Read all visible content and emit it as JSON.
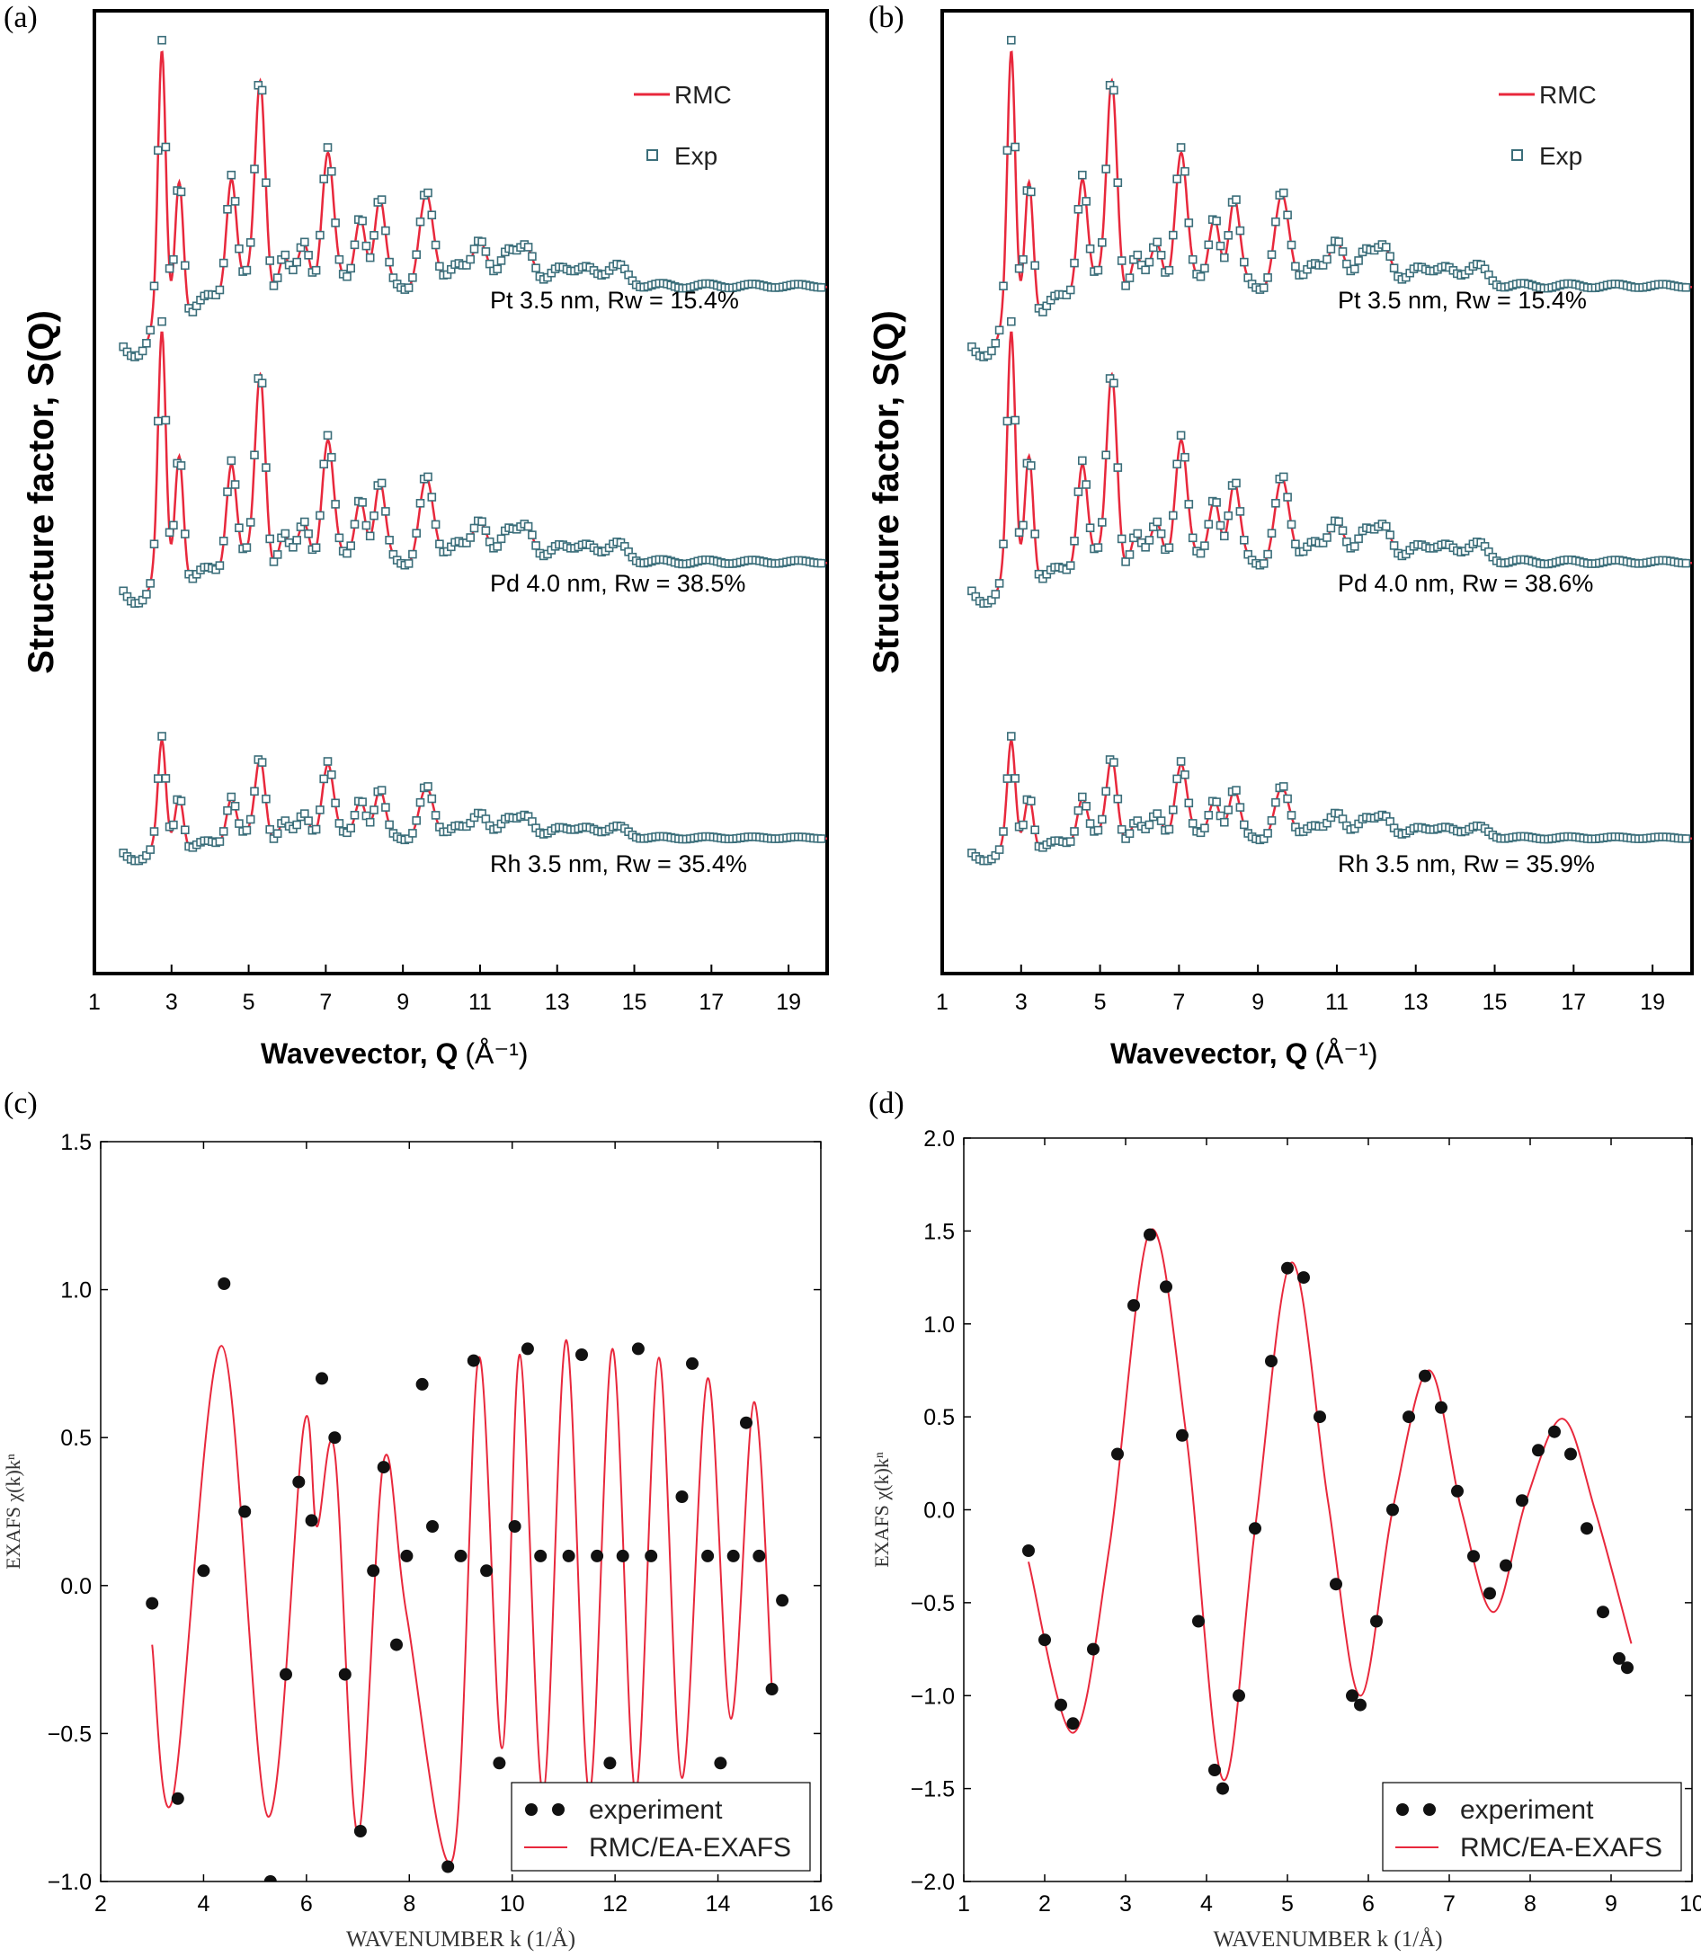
{
  "panels": {
    "a": {
      "label": "(a)"
    },
    "b": {
      "label": "(b)"
    },
    "c": {
      "label": "(c)"
    },
    "d": {
      "label": "(d)"
    }
  },
  "colors": {
    "rmc": "#e8283c",
    "exp_marker": "#3b6e7a",
    "points": "#111111",
    "axis": "#000000"
  },
  "chart_data": [
    {
      "panel": "a",
      "type": "line",
      "xlabel": "Wavevector, Q",
      "xunit": "(Å⁻¹)",
      "ylabel": "Structure factor, S(Q)",
      "xlim": [
        1,
        20
      ],
      "xticks": [
        1,
        3,
        5,
        7,
        9,
        11,
        13,
        15,
        17,
        19
      ],
      "yticks_shown": false,
      "legend": [
        "RMC",
        "Exp"
      ],
      "legend_position": "top-right",
      "series": [
        {
          "name": "Pt",
          "annotation": "Pt  3.5 nm, Rw = 15.4%",
          "rw_percent": 15.4,
          "size_nm": 3.5
        },
        {
          "name": "Pd",
          "annotation": "Pd  4.0 nm, Rw = 38.5%",
          "rw_percent": 38.5,
          "size_nm": 4.0
        },
        {
          "name": "Rh",
          "annotation": "Rh  3.5 nm, Rw = 35.4%",
          "rw_percent": 35.4,
          "size_nm": 3.5
        }
      ],
      "peak_positions_Q": [
        2.75,
        3.2,
        4.55,
        5.3,
        7.05,
        7.9,
        8.4,
        9.6,
        11.0,
        11.7,
        12.2
      ]
    },
    {
      "panel": "b",
      "type": "line",
      "xlabel": "Wavevector, Q",
      "xunit": "(Å⁻¹)",
      "ylabel": "Structure factor, S(Q)",
      "xlim": [
        1,
        20
      ],
      "xticks": [
        1,
        3,
        5,
        7,
        9,
        11,
        13,
        15,
        17,
        19
      ],
      "yticks_shown": false,
      "legend": [
        "RMC",
        "Exp"
      ],
      "legend_position": "top-right",
      "series": [
        {
          "name": "Pt",
          "annotation": "Pt  3.5 nm, Rw = 15.4%",
          "rw_percent": 15.4,
          "size_nm": 3.5
        },
        {
          "name": "Pd",
          "annotation": "Pd  4.0 nm, Rw = 38.6%",
          "rw_percent": 38.6,
          "size_nm": 4.0
        },
        {
          "name": "Rh",
          "annotation": "Rh  3.5 nm, Rw = 35.9%",
          "rw_percent": 35.9,
          "size_nm": 3.5
        }
      ],
      "peak_positions_Q": [
        2.75,
        3.2,
        4.55,
        5.3,
        7.05,
        7.9,
        8.4,
        9.6,
        11.0,
        11.7,
        12.2
      ]
    },
    {
      "panel": "c",
      "type": "scatter",
      "xlabel": "WAVENUMBER k (1/Å)",
      "ylabel": "EXAFS χ(k)kⁿ",
      "xlim": [
        2,
        16
      ],
      "ylim": [
        -1.0,
        1.5
      ],
      "xticks": [
        2,
        4,
        6,
        8,
        10,
        12,
        14,
        16
      ],
      "yticks": [
        -1.0,
        -0.5,
        0.0,
        0.5,
        1.0,
        1.5
      ],
      "xtick_labels": [
        "2",
        "4",
        "6",
        "8",
        "10",
        "12",
        "14",
        "16"
      ],
      "ytick_labels": [
        "−1.0",
        "−0.5",
        "0.0",
        "0.5",
        "1.0",
        "1.5"
      ],
      "legend": [
        "experiment",
        "RMC/EA-EXAFS"
      ],
      "legend_position": "bottom-right",
      "series": [
        {
          "name": "experiment",
          "x": [
            3.0,
            3.5,
            4.0,
            4.4,
            4.8,
            5.3,
            5.6,
            5.85,
            6.1,
            6.3,
            6.55,
            6.75,
            7.05,
            7.3,
            7.5,
            7.75,
            7.95,
            8.25,
            8.45,
            8.75,
            9.0,
            9.25,
            9.5,
            9.75,
            10.05,
            10.3,
            10.55,
            10.85,
            11.1,
            11.35,
            11.65,
            11.9,
            12.15,
            12.45,
            12.7,
            12.95,
            13.3,
            13.5,
            13.8,
            14.05,
            14.3,
            14.55,
            14.8,
            15.05,
            15.25
          ],
          "y": [
            -0.06,
            -0.72,
            0.05,
            1.02,
            0.25,
            -1.0,
            -0.3,
            0.35,
            0.22,
            0.7,
            0.5,
            -0.3,
            -0.83,
            0.05,
            0.4,
            -0.2,
            0.1,
            0.68,
            0.2,
            -0.95,
            0.1,
            0.76,
            0.05,
            -0.6,
            0.2,
            0.8,
            0.1,
            -0.7,
            0.1,
            0.78,
            0.1,
            -0.6,
            0.1,
            0.8,
            0.1,
            -0.7,
            0.3,
            0.75,
            0.1,
            -0.6,
            0.1,
            0.55,
            0.1,
            -0.35,
            -0.05
          ]
        },
        {
          "name": "RMC/EA-EXAFS",
          "x": [
            3.0,
            3.4,
            4.35,
            5.25,
            5.95,
            6.2,
            6.55,
            7.0,
            7.5,
            7.95,
            8.85,
            9.35,
            9.8,
            10.15,
            10.6,
            11.05,
            11.5,
            11.95,
            12.4,
            12.85,
            13.3,
            13.8,
            14.25,
            14.7,
            15.05
          ],
          "y": [
            -0.2,
            -0.72,
            0.81,
            -0.78,
            0.54,
            0.2,
            0.45,
            -0.84,
            0.42,
            -0.1,
            -0.92,
            0.77,
            -0.55,
            0.78,
            -0.7,
            0.83,
            -0.7,
            0.8,
            -0.7,
            0.77,
            -0.65,
            0.7,
            -0.45,
            0.62,
            -0.35
          ]
        }
      ]
    },
    {
      "panel": "d",
      "type": "scatter",
      "xlabel": "WAVENUMBER k (1/Å)",
      "ylabel": "EXAFS χ(k)kⁿ",
      "xlim": [
        1,
        10
      ],
      "ylim": [
        -2.0,
        2.0
      ],
      "xticks": [
        1,
        2,
        3,
        4,
        5,
        6,
        7,
        8,
        9,
        10
      ],
      "yticks": [
        -2.0,
        -1.5,
        -1.0,
        -0.5,
        0.0,
        0.5,
        1.0,
        1.5,
        2.0
      ],
      "xtick_labels": [
        "1",
        "2",
        "3",
        "4",
        "5",
        "6",
        "7",
        "8",
        "9",
        "10"
      ],
      "ytick_labels": [
        "−2.0",
        "−1.5",
        "−1.0",
        "−0.5",
        "0.0",
        "0.5",
        "1.0",
        "1.5",
        "2.0"
      ],
      "legend": [
        "experiment",
        "RMC/EA-EXAFS"
      ],
      "legend_position": "bottom-right",
      "series": [
        {
          "name": "experiment",
          "x": [
            1.8,
            2.0,
            2.2,
            2.35,
            2.6,
            2.9,
            3.1,
            3.3,
            3.5,
            3.7,
            3.9,
            4.1,
            4.2,
            4.4,
            4.6,
            4.8,
            5.0,
            5.2,
            5.4,
            5.6,
            5.8,
            5.9,
            6.1,
            6.3,
            6.5,
            6.7,
            6.9,
            7.1,
            7.3,
            7.5,
            7.7,
            7.9,
            8.1,
            8.3,
            8.5,
            8.7,
            8.9,
            9.1,
            9.2
          ],
          "y": [
            -0.22,
            -0.7,
            -1.05,
            -1.15,
            -0.75,
            0.3,
            1.1,
            1.48,
            1.2,
            0.4,
            -0.6,
            -1.4,
            -1.5,
            -1.0,
            -0.1,
            0.8,
            1.3,
            1.25,
            0.5,
            -0.4,
            -1.0,
            -1.05,
            -0.6,
            0.0,
            0.5,
            0.72,
            0.55,
            0.1,
            -0.25,
            -0.45,
            -0.3,
            0.05,
            0.32,
            0.42,
            0.3,
            -0.1,
            -0.55,
            -0.8,
            -0.85
          ]
        },
        {
          "name": "RMC/EA-EXAFS",
          "x": [
            1.8,
            2.35,
            2.8,
            3.3,
            3.75,
            4.2,
            4.6,
            5.05,
            5.5,
            5.9,
            6.3,
            6.75,
            7.15,
            7.55,
            7.95,
            8.4,
            8.8,
            9.25
          ],
          "y": [
            -0.28,
            -1.2,
            -0.2,
            1.5,
            0.4,
            -1.45,
            -0.1,
            1.33,
            0.05,
            -1.0,
            0.0,
            0.75,
            0.0,
            -0.55,
            0.05,
            0.49,
            0.0,
            -0.72
          ]
        }
      ]
    }
  ]
}
